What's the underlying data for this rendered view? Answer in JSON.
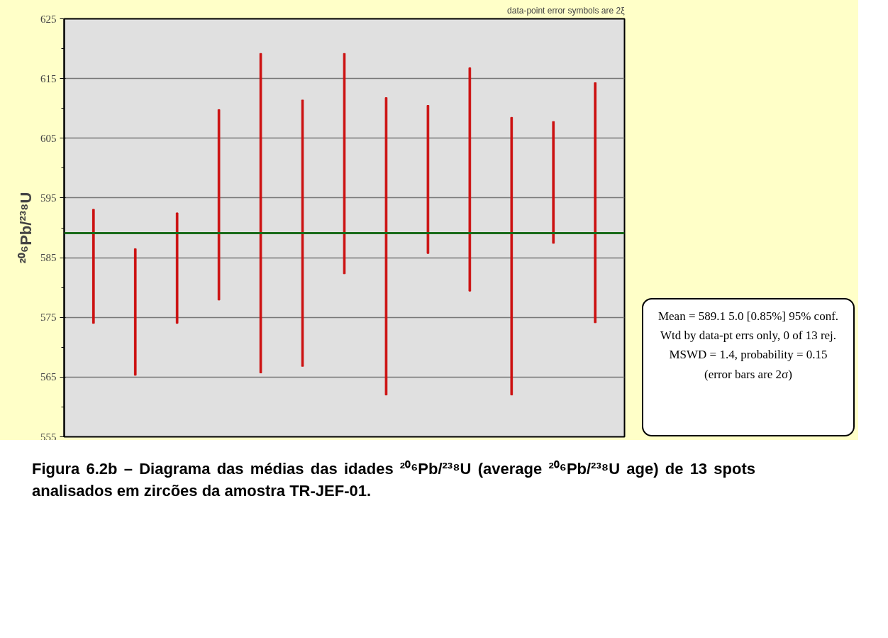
{
  "chart_data": {
    "type": "bar",
    "title": "Figura 6.2b – Diagrama das médias das idades ²⁰⁶Pb/²³⁸U (average ²⁰⁶Pb/²³⁸U age) de 13 spots analisados em zircões da amostra TR-JEF-01.",
    "ylabel": "²⁰⁶Pb/²³⁸U",
    "categories": [
      null,
      null,
      null,
      null,
      null,
      null,
      null,
      null,
      null,
      null,
      null,
      null,
      null
    ],
    "base": [
      574.0,
      565.3,
      574.0,
      577.9,
      565.7,
      566.8,
      582.3,
      562.0,
      585.7,
      579.4,
      562.0,
      587.4,
      574.1
    ],
    "values": [
      19.1,
      21.2,
      18.5,
      31.9,
      53.5,
      44.6,
      36.9,
      49.8,
      24.8,
      37.4,
      46.5,
      20.4,
      40.2
    ],
    "color": "#cc1111",
    "ylim": [
      555,
      625
    ],
    "yticks": [
      555,
      565,
      575,
      585,
      595,
      605,
      615,
      625
    ],
    "grid": "y",
    "tick_labels": "y",
    "ref_lines": [
      {
        "axis": "y",
        "value": 589.1,
        "label": null,
        "color": "#1a6b1a"
      }
    ],
    "annotations": [
      "data-point error symbols are 2ξ",
      "Mean = 589.1  5.0  [0.85%]  95% conf.",
      "Wtd by data-pt errs only, 0 of 13 rej.",
      "MSWD = 1.4, probability = 0.15",
      "(error bars are 2σ)"
    ]
  }
}
